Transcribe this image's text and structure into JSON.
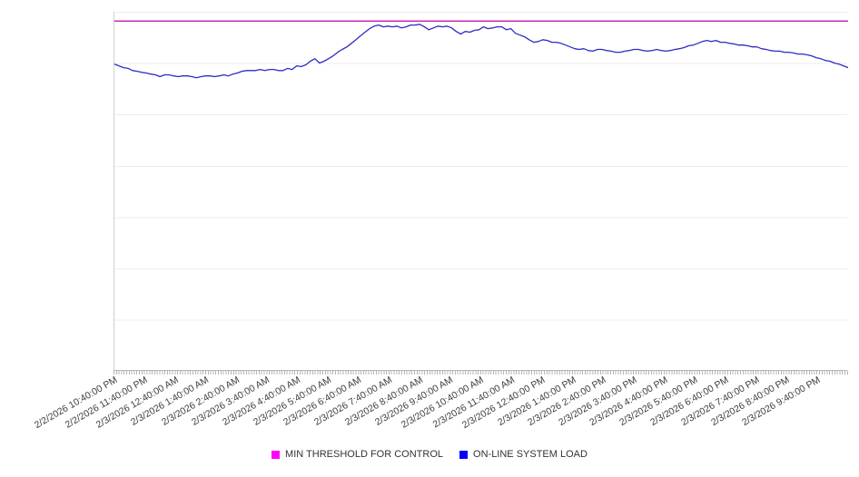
{
  "chart_data": {
    "type": "line",
    "title": "",
    "legend_position": "bottom",
    "grid": "horizontal-only",
    "y_axis": {
      "tick_labels_visible": false,
      "range_percent_of_plot": [
        0,
        100
      ]
    },
    "x_axis": {
      "tick_labels": [
        "2/2/2026 10:40:00 PM",
        "2/2/2026 11:40:00 PM",
        "2/3/2026 12:40:00 AM",
        "2/3/2026 1:40:00 AM",
        "2/3/2026 2:40:00 AM",
        "2/3/2026 3:40:00 AM",
        "2/3/2026 4:40:00 AM",
        "2/3/2026 5:40:00 AM",
        "2/3/2026 6:40:00 AM",
        "2/3/2026 7:40:00 AM",
        "2/3/2026 8:40:00 AM",
        "2/3/2026 9:40:00 AM",
        "2/3/2026 10:40:00 AM",
        "2/3/2026 11:40:00 AM",
        "2/3/2026 12:40:00 PM",
        "2/3/2026 1:40:00 PM",
        "2/3/2026 2:40:00 PM",
        "2/3/2026 3:40:00 PM",
        "2/3/2026 4:40:00 PM",
        "2/3/2026 5:40:00 PM",
        "2/3/2026 6:40:00 PM",
        "2/3/2026 7:40:00 PM",
        "2/3/2026 8:40:00 PM",
        "2/3/2026 9:40:00 PM"
      ],
      "minor_ticks_per_label_interval": 12
    },
    "series": [
      {
        "name": "MIN THRESHOLD FOR CONTROL",
        "type": "threshold-line",
        "line_color": "#c929b8",
        "legend_color": "#ff00ff",
        "value": 97.4
      },
      {
        "name": "ON-LINE SYSTEM LOAD",
        "type": "line",
        "line_color": "#2d2dc1",
        "legend_color": "#0000ff",
        "x_uniform_from": "2/2/2026 10:40:00 PM",
        "x_uniform_to": "2/3/2026 9:40:00 PM",
        "values": [
          85.4,
          84.9,
          84.4,
          84.2,
          83.6,
          83.4,
          83.1,
          82.9,
          82.6,
          82.4,
          81.9,
          82.4,
          82.4,
          82.1,
          81.9,
          82.1,
          82.1,
          81.9,
          81.6,
          81.9,
          82.1,
          82.1,
          81.9,
          82.1,
          82.4,
          82.1,
          82.6,
          82.9,
          83.4,
          83.6,
          83.6,
          83.6,
          83.9,
          83.6,
          83.9,
          83.9,
          83.6,
          83.6,
          84.2,
          83.9,
          84.9,
          84.7,
          85.2,
          86.2,
          86.9,
          85.7,
          86.2,
          86.9,
          87.7,
          88.7,
          89.5,
          90.2,
          91.2,
          92.2,
          93.3,
          94.3,
          95.3,
          96.0,
          96.3,
          95.8,
          96.0,
          95.8,
          96.0,
          95.5,
          95.8,
          96.3,
          96.3,
          96.5,
          95.8,
          95.0,
          95.5,
          96.0,
          95.8,
          96.0,
          95.5,
          94.5,
          93.8,
          94.5,
          94.3,
          94.8,
          95.0,
          95.8,
          95.3,
          95.5,
          95.8,
          95.8,
          95.0,
          95.3,
          94.0,
          93.5,
          93.0,
          92.2,
          91.5,
          91.7,
          92.2,
          92.0,
          91.5,
          91.5,
          91.2,
          90.7,
          90.2,
          89.7,
          89.5,
          89.7,
          89.2,
          89.0,
          89.5,
          89.5,
          89.2,
          89.0,
          88.7,
          88.7,
          89.0,
          89.2,
          89.5,
          89.5,
          89.2,
          89.0,
          89.2,
          89.5,
          89.2,
          89.0,
          89.2,
          89.5,
          89.7,
          90.0,
          90.5,
          90.7,
          91.2,
          91.7,
          92.0,
          91.7,
          92.0,
          91.5,
          91.5,
          91.2,
          91.0,
          90.7,
          90.7,
          90.5,
          90.2,
          90.2,
          89.7,
          89.5,
          89.2,
          89.0,
          89.0,
          88.7,
          88.7,
          88.5,
          88.2,
          88.2,
          88.0,
          87.7,
          87.2,
          86.9,
          86.4,
          86.2,
          85.7,
          85.4,
          84.9,
          84.4
        ]
      }
    ]
  }
}
